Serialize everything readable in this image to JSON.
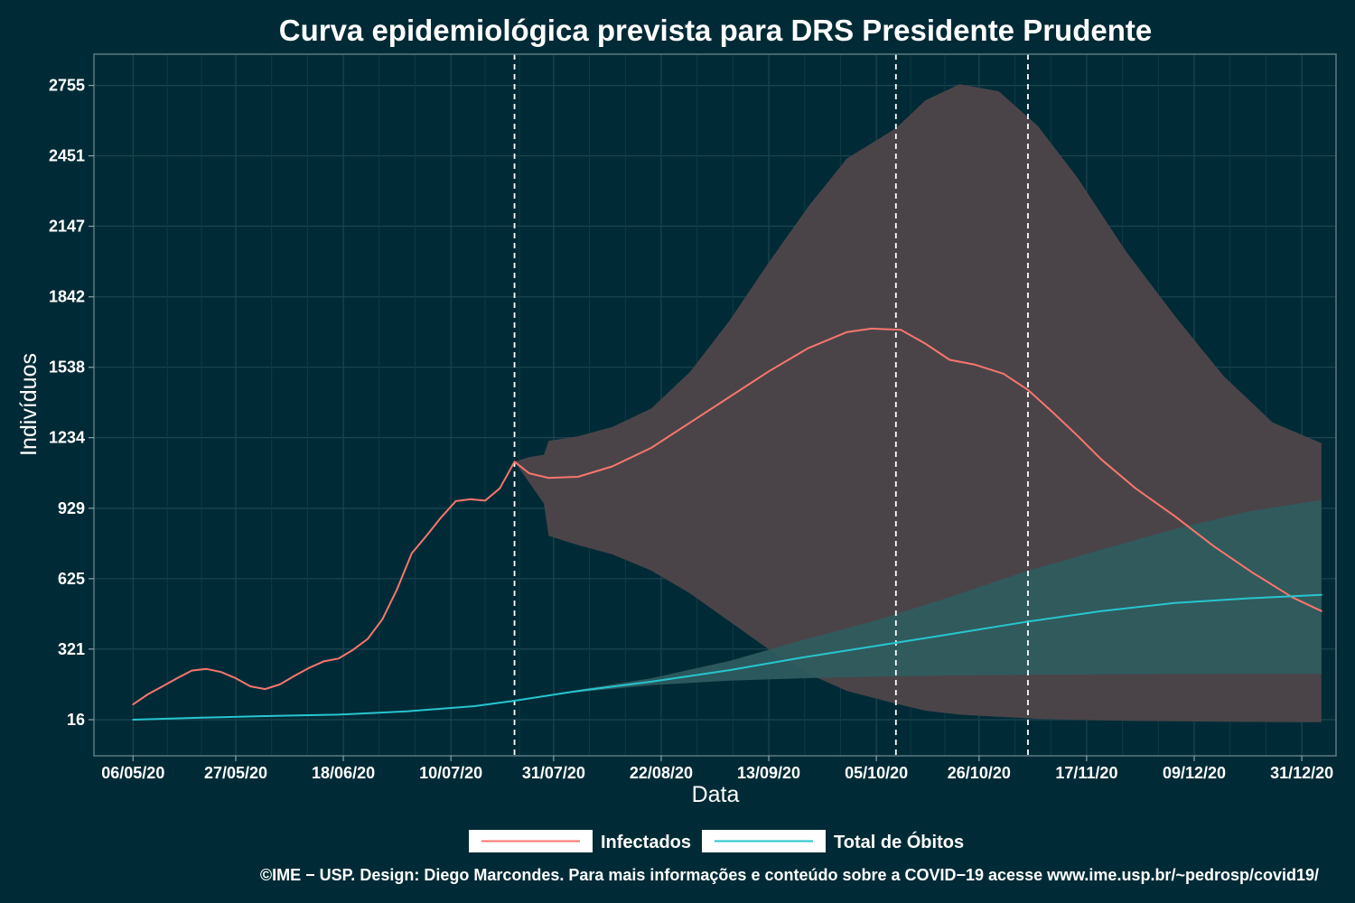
{
  "chart_data": {
    "type": "line",
    "title": "Curva epidemiológica prevista para DRS Presidente Prudente",
    "xlabel": "Data",
    "ylabel": "Indivíduos",
    "x_range": [
      "2020-04-28",
      "2021-01-07"
    ],
    "ylim": [
      -140,
      2890
    ],
    "grid": true,
    "legend_position": "bottom",
    "x_ticks": [
      "06/05/20",
      "27/05/20",
      "18/06/20",
      "10/07/20",
      "31/07/20",
      "22/08/20",
      "13/09/20",
      "05/10/20",
      "26/10/20",
      "17/11/20",
      "09/12/20",
      "31/12/20"
    ],
    "x_tick_dates": [
      "2020-05-06",
      "2020-05-27",
      "2020-06-18",
      "2020-07-10",
      "2020-07-31",
      "2020-08-22",
      "2020-09-13",
      "2020-10-05",
      "2020-10-26",
      "2020-11-17",
      "2020-12-09",
      "2020-12-31"
    ],
    "y_ticks": [
      16,
      321,
      625,
      929,
      1234,
      1538,
      1842,
      2147,
      2451,
      2755
    ],
    "vlines": [
      "2020-07-23",
      "2020-10-09",
      "2020-11-05"
    ],
    "series": [
      {
        "name": "Infectados",
        "color": "#f8766d",
        "points": [
          [
            "2020-05-06",
            82
          ],
          [
            "2020-05-09",
            125
          ],
          [
            "2020-05-12",
            160
          ],
          [
            "2020-05-15",
            195
          ],
          [
            "2020-05-18",
            228
          ],
          [
            "2020-05-21",
            235
          ],
          [
            "2020-05-24",
            222
          ],
          [
            "2020-05-27",
            195
          ],
          [
            "2020-05-30",
            160
          ],
          [
            "2020-06-02",
            148
          ],
          [
            "2020-06-05",
            168
          ],
          [
            "2020-06-08",
            205
          ],
          [
            "2020-06-11",
            240
          ],
          [
            "2020-06-14",
            268
          ],
          [
            "2020-06-17",
            280
          ],
          [
            "2020-06-20",
            318
          ],
          [
            "2020-06-23",
            365
          ],
          [
            "2020-06-26",
            450
          ],
          [
            "2020-06-29",
            580
          ],
          [
            "2020-07-02",
            735
          ],
          [
            "2020-07-05",
            810
          ],
          [
            "2020-07-08",
            890
          ],
          [
            "2020-07-11",
            960
          ],
          [
            "2020-07-14",
            968
          ],
          [
            "2020-07-17",
            962
          ],
          [
            "2020-07-20",
            1015
          ],
          [
            "2020-07-23",
            1130
          ],
          [
            "2020-07-26",
            1080
          ],
          [
            "2020-07-30",
            1060
          ],
          [
            "2020-08-05",
            1065
          ],
          [
            "2020-08-12",
            1110
          ],
          [
            "2020-08-20",
            1190
          ],
          [
            "2020-08-28",
            1300
          ],
          [
            "2020-09-05",
            1410
          ],
          [
            "2020-09-13",
            1520
          ],
          [
            "2020-09-21",
            1620
          ],
          [
            "2020-09-29",
            1690
          ],
          [
            "2020-10-04",
            1705
          ],
          [
            "2020-10-10",
            1700
          ],
          [
            "2020-10-15",
            1640
          ],
          [
            "2020-10-20",
            1570
          ],
          [
            "2020-10-25",
            1550
          ],
          [
            "2020-10-31",
            1510
          ],
          [
            "2020-11-05",
            1440
          ],
          [
            "2020-11-10",
            1345
          ],
          [
            "2020-11-15",
            1245
          ],
          [
            "2020-11-20",
            1140
          ],
          [
            "2020-11-27",
            1015
          ],
          [
            "2020-12-05",
            895
          ],
          [
            "2020-12-13",
            765
          ],
          [
            "2020-12-21",
            650
          ],
          [
            "2020-12-29",
            545
          ],
          [
            "2021-01-04",
            485
          ]
        ]
      },
      {
        "name": "Total de Óbitos",
        "color": "#26c6cf",
        "points": [
          [
            "2020-05-06",
            16
          ],
          [
            "2020-05-20",
            25
          ],
          [
            "2020-06-03",
            32
          ],
          [
            "2020-06-17",
            38
          ],
          [
            "2020-07-01",
            52
          ],
          [
            "2020-07-15",
            75
          ],
          [
            "2020-07-23",
            98
          ],
          [
            "2020-08-05",
            140
          ],
          [
            "2020-08-20",
            180
          ],
          [
            "2020-09-05",
            230
          ],
          [
            "2020-09-20",
            285
          ],
          [
            "2020-10-05",
            335
          ],
          [
            "2020-10-20",
            385
          ],
          [
            "2020-11-05",
            440
          ],
          [
            "2020-11-20",
            485
          ],
          [
            "2020-12-05",
            520
          ],
          [
            "2020-12-20",
            540
          ],
          [
            "2021-01-04",
            555
          ]
        ]
      }
    ],
    "bands": [
      {
        "series": "Infectados",
        "color": "#4a4449",
        "points": [
          [
            "2020-07-23",
            1130,
            1130
          ],
          [
            "2020-07-26",
            1150,
            1040
          ],
          [
            "2020-07-29",
            1160,
            950
          ],
          [
            "2020-07-30",
            1220,
            810
          ],
          [
            "2020-08-05",
            1240,
            770
          ],
          [
            "2020-08-12",
            1280,
            730
          ],
          [
            "2020-08-20",
            1360,
            660
          ],
          [
            "2020-08-28",
            1520,
            560
          ],
          [
            "2020-09-05",
            1740,
            440
          ],
          [
            "2020-09-13",
            1990,
            320
          ],
          [
            "2020-09-21",
            2230,
            215
          ],
          [
            "2020-09-29",
            2440,
            140
          ],
          [
            "2020-10-09",
            2570,
            85
          ],
          [
            "2020-10-15",
            2690,
            55
          ],
          [
            "2020-10-22",
            2760,
            38
          ],
          [
            "2020-10-30",
            2730,
            28
          ],
          [
            "2020-11-07",
            2580,
            20
          ],
          [
            "2020-11-15",
            2360,
            15
          ],
          [
            "2020-11-25",
            2040,
            11
          ],
          [
            "2020-12-05",
            1760,
            9
          ],
          [
            "2020-12-15",
            1500,
            7
          ],
          [
            "2020-12-25",
            1300,
            6
          ],
          [
            "2021-01-04",
            1210,
            5
          ]
        ]
      },
      {
        "series": "Total de Óbitos",
        "color": "#2f5c60",
        "points": [
          [
            "2020-07-23",
            98,
            98
          ],
          [
            "2020-08-05",
            145,
            135
          ],
          [
            "2020-08-20",
            195,
            165
          ],
          [
            "2020-09-05",
            270,
            185
          ],
          [
            "2020-09-20",
            360,
            195
          ],
          [
            "2020-10-05",
            445,
            202
          ],
          [
            "2020-10-20",
            545,
            207
          ],
          [
            "2020-11-05",
            660,
            210
          ],
          [
            "2020-11-20",
            750,
            212
          ],
          [
            "2020-12-05",
            840,
            213
          ],
          [
            "2020-12-20",
            915,
            214
          ],
          [
            "2021-01-04",
            965,
            214
          ]
        ]
      }
    ]
  },
  "caption": "©IME − USP. Design: Diego Marcondes. Para mais informações e conteúdo sobre a COVID−19 acesse www.ime.usp.br/~pedrosp/covid19/"
}
